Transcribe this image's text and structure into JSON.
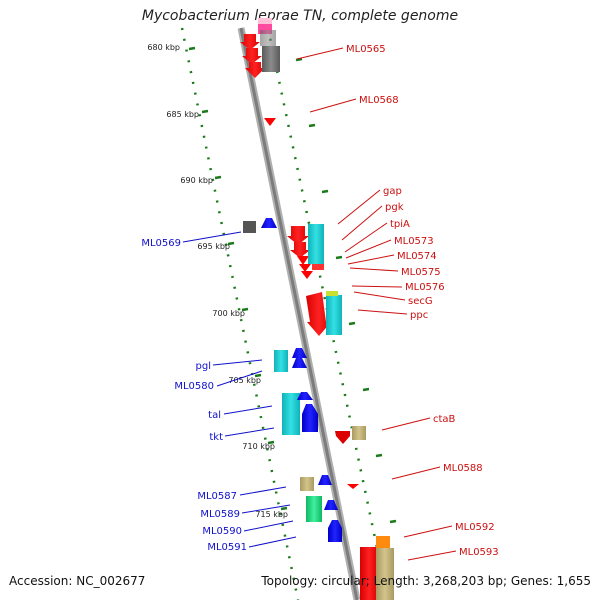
{
  "header": {
    "title": "Mycobacterium leprae TN, complete genome"
  },
  "footer": {
    "accession": "Accession: NC_002677",
    "stats": "Topology: circular; Length: 3,268,203 bp; Genes: 1,655"
  },
  "ticks": [
    "680 kbp",
    "685 kbp",
    "690 kbp",
    "695 kbp",
    "700 kbp",
    "705 kbp",
    "710 kbp",
    "715 kbp"
  ],
  "left_labels": [
    "ML0569",
    "pgl",
    "ML0580",
    "tal",
    "tkt",
    "ML0587",
    "ML0589",
    "ML0590",
    "ML0591"
  ],
  "right_labels": [
    "ML0565",
    "ML0568",
    "gap",
    "pgk",
    "tpiA",
    "ML0573",
    "ML0574",
    "ML0575",
    "ML0576",
    "secG",
    "ppc",
    "ctaB",
    "ML0588",
    "ML0592",
    "ML0593"
  ],
  "colors": {
    "forward_label": "#1010cc",
    "reverse_label": "#cc1010",
    "backbone": "#8a8a8a",
    "tick": "#1a7a1a"
  }
}
